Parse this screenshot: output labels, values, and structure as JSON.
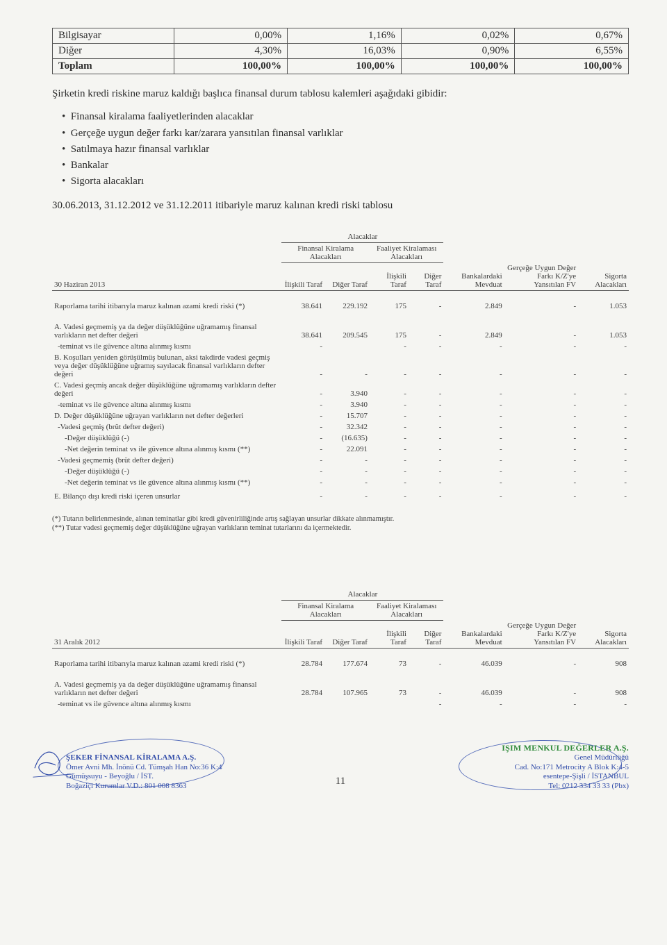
{
  "top_table": {
    "rows": [
      {
        "label": "Bilgisayar",
        "bold": false,
        "cells": [
          "0,00%",
          "1,16%",
          "0,02%",
          "0,67%"
        ]
      },
      {
        "label": "Diğer",
        "bold": false,
        "cells": [
          "4,30%",
          "16,03%",
          "0,90%",
          "6,55%"
        ]
      },
      {
        "label": "Toplam",
        "bold": true,
        "cells": [
          "100,00%",
          "100,00%",
          "100,00%",
          "100,00%"
        ]
      }
    ]
  },
  "intro_para": "Şirketin kredi riskine maruz kaldığı başlıca finansal durum tablosu kalemleri aşağıdaki gibidir:",
  "bullets": [
    "Finansal kiralama faaliyetlerinden alacaklar",
    "Gerçeğe uygun değer farkı kar/zarara yansıtılan finansal varlıklar",
    "Satılmaya hazır finansal varlıklar",
    "Bankalar",
    "Sigorta alacakları"
  ],
  "dates_line": "30.06.2013, 31.12.2012 ve 31.12.2011 itibariyle maruz kalınan kredi riski tablosu",
  "risk_headers": {
    "alacaklar": "Alacaklar",
    "fin_kir": "Finansal Kiralama Alacakları",
    "faal_kir": "Faaliyet Kiralaması Alacakları",
    "iliskili": "İlişkili Taraf",
    "diger": "Diğer Taraf",
    "bank": "Bankalardaki Mevduat",
    "fv": "Gerçeğe Uygun Değer Farkı K/Z'ye Yansıtılan FV",
    "sigorta": "Sigorta Alacakları"
  },
  "table1": {
    "period_label": "30 Haziran 2013",
    "rows": [
      {
        "desc": "Raporlama tarihi itibarıyla maruz kalınan azami kredi riski (*)",
        "cells": [
          "38.641",
          "229.192",
          "175",
          "-",
          "2.849",
          "-",
          "1.053"
        ],
        "cls": "row-line"
      },
      {
        "desc": "A. Vadesi geçmemiş ya da değer düşüklüğüne uğramamış finansal varlıkların net defter değeri",
        "cells": [
          "38.641",
          "209.545",
          "175",
          "-",
          "2.849",
          "-",
          "1.053"
        ],
        "cls": ""
      },
      {
        "desc": "-teminat vs ile güvence altına alınmış kısmı",
        "cells": [
          "-",
          "",
          "-",
          "-",
          "-",
          "-",
          "-"
        ],
        "cls": "indent1"
      },
      {
        "desc": "B. Koşulları yeniden görüşülmüş bulunan, aksi takdirde vadesi geçmiş veya değer düşüklüğüne uğramış sayılacak finansal varlıkların defter değeri",
        "cells": [
          "-",
          "-",
          "-",
          "-",
          "-",
          "-",
          "-"
        ],
        "cls": ""
      },
      {
        "desc": "C. Vadesi geçmiş ancak değer düşüklüğüne uğramamış varlıkların defter değeri",
        "cells": [
          "-",
          "3.940",
          "-",
          "-",
          "-",
          "-",
          "-"
        ],
        "cls": ""
      },
      {
        "desc": "-teminat vs ile güvence altına alınmış kısmı",
        "cells": [
          "-",
          "3.940",
          "-",
          "-",
          "-",
          "-",
          "-"
        ],
        "cls": "indent1"
      },
      {
        "desc": "D. Değer düşüklüğüne uğrayan varlıkların net defter değerleri",
        "cells": [
          "-",
          "15.707",
          "-",
          "-",
          "-",
          "-",
          "-"
        ],
        "cls": ""
      },
      {
        "desc": "-Vadesi geçmiş (brüt defter değeri)",
        "cells": [
          "-",
          "32.342",
          "-",
          "-",
          "-",
          "-",
          "-"
        ],
        "cls": "indent1"
      },
      {
        "desc": "-Değer düşüklüğü (-)",
        "cells": [
          "-",
          "(16.635)",
          "-",
          "-",
          "-",
          "-",
          "-"
        ],
        "cls": "indent2"
      },
      {
        "desc": "-Net değerin teminat vs ile güvence altına alınmış kısmı (**)",
        "cells": [
          "-",
          "22.091",
          "-",
          "-",
          "-",
          "-",
          "-"
        ],
        "cls": "indent2"
      },
      {
        "desc": "-Vadesi geçmemiş (brüt defter değeri)",
        "cells": [
          "-",
          "-",
          "-",
          "-",
          "-",
          "-",
          "-"
        ],
        "cls": "indent1"
      },
      {
        "desc": "-Değer düşüklüğü (-)",
        "cells": [
          "-",
          "-",
          "-",
          "-",
          "-",
          "-",
          "-"
        ],
        "cls": "indent2"
      },
      {
        "desc": "-Net değerin teminat vs ile güvence altına alınmış kısmı (**)",
        "cells": [
          "-",
          "-",
          "-",
          "-",
          "-",
          "-",
          "-"
        ],
        "cls": "indent2"
      },
      {
        "desc": "E. Bilanço dışı kredi riski içeren unsurlar",
        "cells": [
          "-",
          "-",
          "-",
          "-",
          "-",
          "-",
          "-"
        ],
        "cls": "row-line"
      }
    ]
  },
  "footnotes": [
    "(*) Tutarın belirlenmesinde, alınan teminatlar gibi kredi güvenirliliğinde artış sağlayan unsurlar dikkate alınmamıştır.",
    "(**) Tutar vadesi geçmemiş değer düşüklüğüne uğrayan varlıkların teminat tutarlarını da içermektedir."
  ],
  "table2": {
    "period_label": "31 Aralık 2012",
    "rows": [
      {
        "desc": "Raporlama tarihi itibarıyla maruz kalınan azami kredi riski (*)",
        "cells": [
          "28.784",
          "177.674",
          "73",
          "-",
          "46.039",
          "-",
          "908"
        ],
        "cls": "row-line"
      },
      {
        "desc": "A. Vadesi geçmemiş ya da değer düşüklüğüne uğramamış finansal varlıkların net defter değeri",
        "cells": [
          "28.784",
          "107.965",
          "73",
          "-",
          "46.039",
          "-",
          "908"
        ],
        "cls": ""
      },
      {
        "desc": "-teminat vs ile güvence altına alınmış kısmı",
        "cells": [
          "",
          "",
          "",
          "-",
          "-",
          "-",
          "-"
        ],
        "cls": "indent1"
      }
    ]
  },
  "stamps": {
    "left": {
      "title": "ŞEKER FİNANSAL KİRALAMA A.Ş.",
      "line2": "Ömer Avni Mh. İnönü Cd. Tümşah Han No:36 K:4",
      "line3": "Gümüşsuyu - Beyoğlu / İST.",
      "line4": "Boğaziçi Kurumlar V.D.: 801 008 8363"
    },
    "right": {
      "brand": "IŞIM MENKUL DEĞERLER A.Ş.",
      "line2": "Genel Müdürlüğü",
      "line3": "Cad. No:171 Metrocity A Blok K:4-5",
      "line4": "esentepe-Şişli / İSTANBUL",
      "line5": "Tel: 0212 334 33 33 (Pbx)"
    }
  },
  "page_number": "11"
}
